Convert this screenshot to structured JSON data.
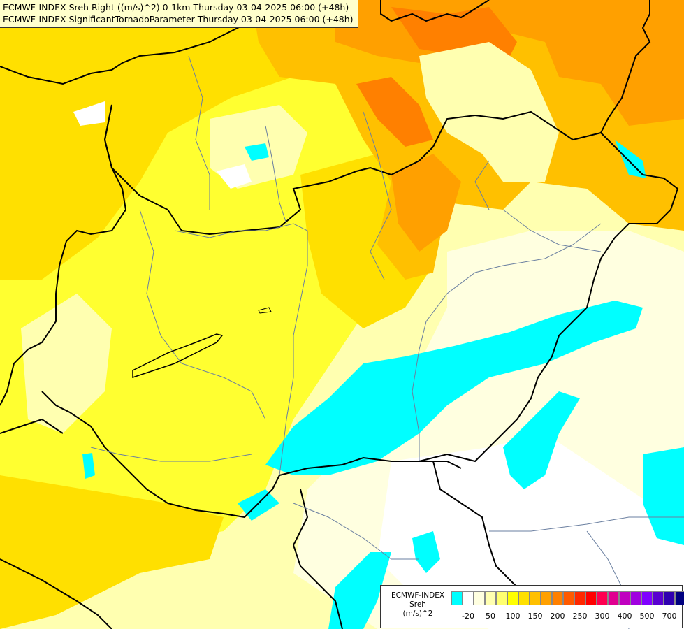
{
  "title": {
    "line1": "ECMWF-INDEX Sreh Right ((m/s)^2) 0-1km Thursday 03-04-2025 06:00 (+48h)",
    "line2": "ECMWF-INDEX SignificantTornadoParameter Thursday 03-04-2025 06:00 (+48h)"
  },
  "legend": {
    "title1": "ECMWF-INDEX",
    "title2": "Sreh",
    "title3": "(m/s)^2",
    "colors": [
      "#00ffff",
      "#ffffff",
      "#ffffe0",
      "#ffffb0",
      "#ffff70",
      "#ffff00",
      "#ffe000",
      "#ffc000",
      "#ffa000",
      "#ff8000",
      "#ff5a00",
      "#ff2800",
      "#ff0000",
      "#ff0050",
      "#e00090",
      "#c000c0",
      "#a000e0",
      "#8000ff",
      "#5a00d0",
      "#3000b0",
      "#000080"
    ],
    "ticks": [
      "-20",
      "50",
      "100",
      "150",
      "200",
      "250",
      "300",
      "400",
      "500",
      "700"
    ]
  }
}
